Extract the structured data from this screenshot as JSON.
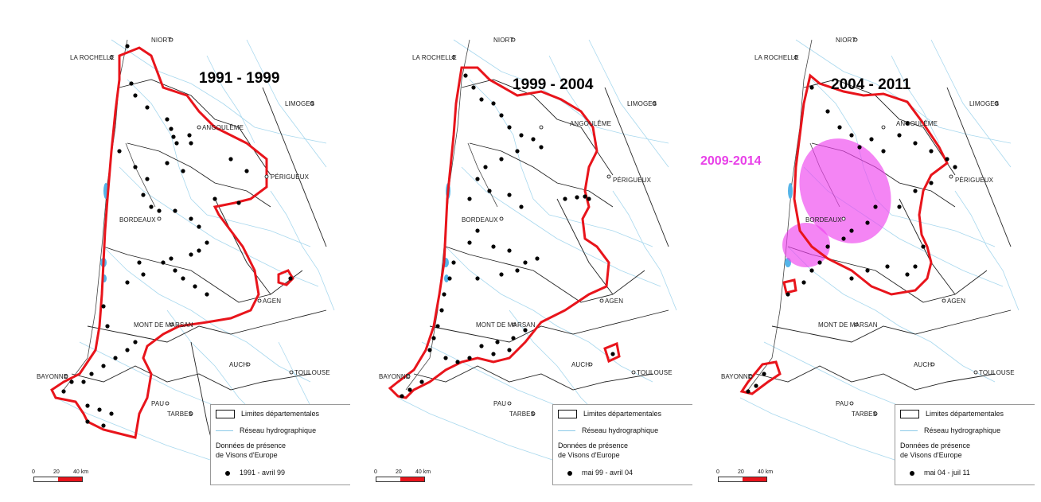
{
  "panels": [
    {
      "period_label": "1991 - 1999",
      "legend_period": "1991 - avril 99"
    },
    {
      "period_label": "1999 - 2004",
      "legend_period": "mai 99 - avril 04"
    },
    {
      "period_label": "2004 - 2011",
      "legend_period": "mai 04 - juil 11"
    }
  ],
  "cities": {
    "niort": "NIORT",
    "la_rochelle": "LA ROCHELLE",
    "limoges": "LIMOGES",
    "angouleme": "ANGOULÊME",
    "perigueux": "PÉRIGUEUX",
    "bordeaux": "BORDEAUX",
    "agen": "AGEN",
    "mont_de_marsan": "MONT DE MARSAN",
    "auch": "AUCH",
    "toulouse": "TOULOUSE",
    "bayonne": "BAYONNE",
    "pau": "PAU",
    "tarbes": "TARBES"
  },
  "legend": {
    "limits": "Limites départementales",
    "rivers": "Réseau hydrographique",
    "presence_line1": "Données de présence",
    "presence_line2": "de Visons d'Europe"
  },
  "scale": {
    "zero": "0",
    "twenty": "20",
    "forty": "40 km"
  },
  "highlight_label": "2009-2014",
  "colors": {
    "range_outline": "#e8141b",
    "highlight_area": "#ee44ee",
    "highlight_text": "#e83fe8",
    "water": "#55b4e8",
    "rivers": "#a8d8ee",
    "dept_lines": "#222222"
  }
}
